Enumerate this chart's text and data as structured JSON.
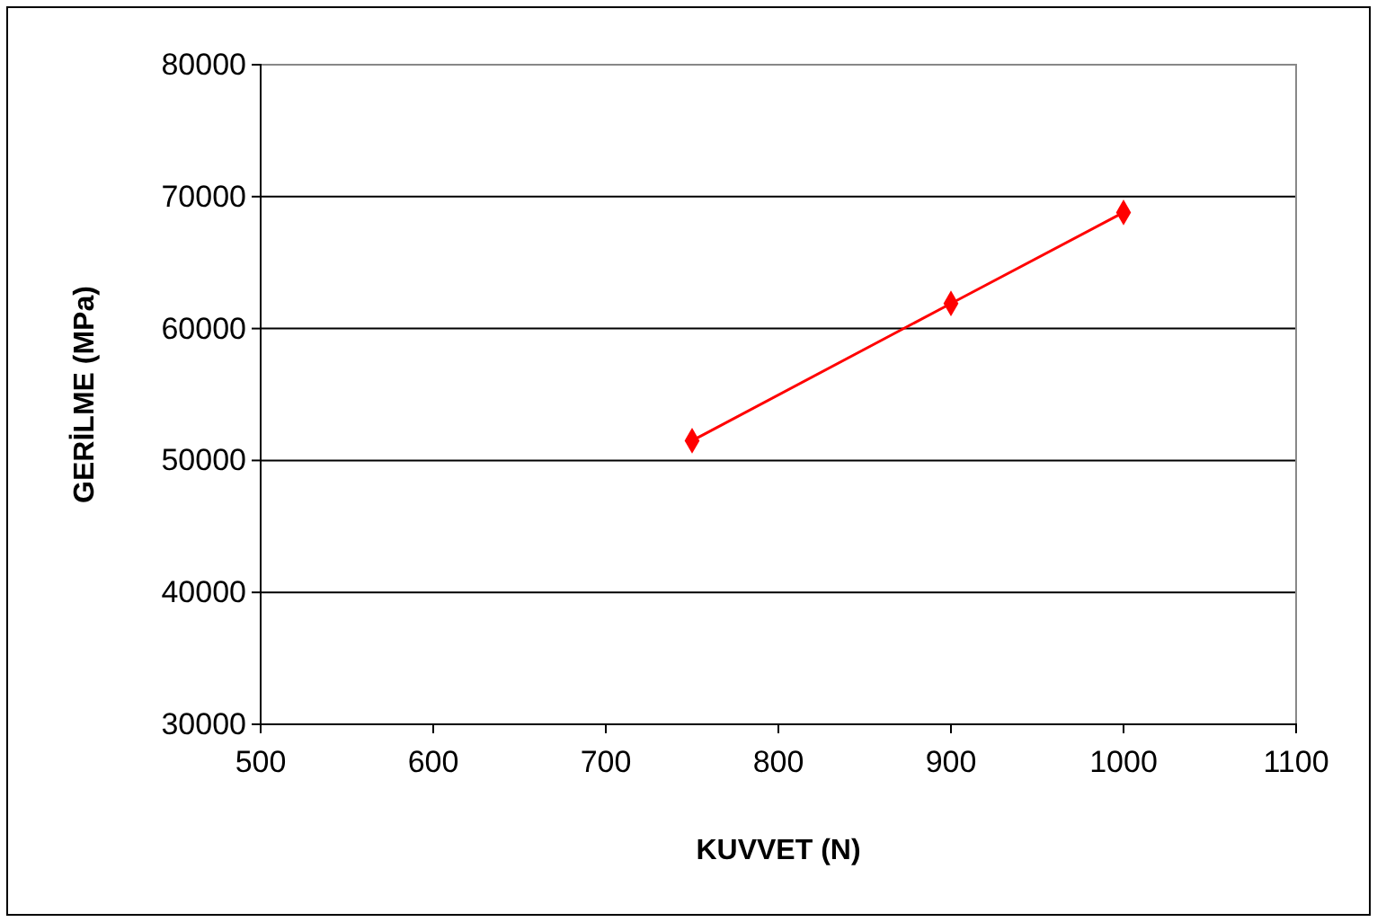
{
  "chart_data": {
    "type": "line",
    "xlabel": "KUVVET (N)",
    "ylabel": "GERİLME (MPa)",
    "x": [
      750,
      900,
      1000
    ],
    "series": [
      {
        "color": "#ff0000",
        "values": [
          51500,
          61900,
          68800
        ]
      }
    ],
    "xlim": [
      500,
      1100
    ],
    "xticks": [
      500,
      600,
      700,
      800,
      900,
      1000,
      1100
    ],
    "ylim": [
      30000,
      80000
    ],
    "yticks": [
      30000,
      40000,
      50000,
      60000,
      70000,
      80000
    ],
    "grid": "y",
    "marker": "diamond",
    "line_style": "solid"
  }
}
